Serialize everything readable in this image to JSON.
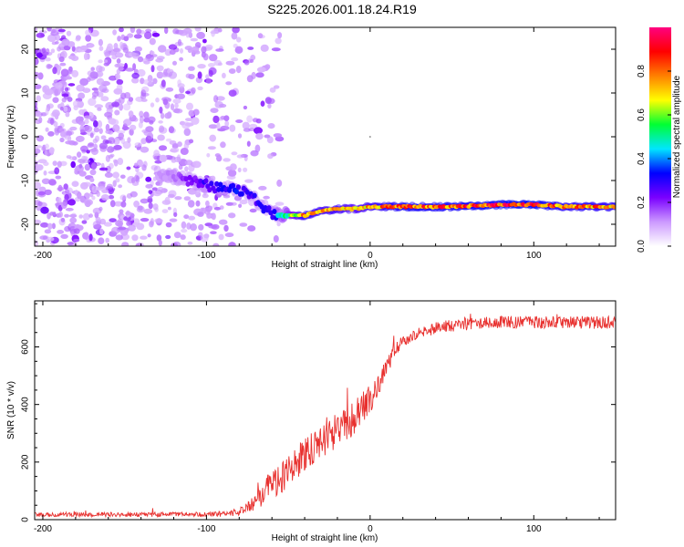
{
  "title": "S225.2026.001.18.24.R19",
  "chart_data": [
    {
      "type": "heatmap",
      "id": "spectrogram",
      "xlabel": "Height of straight line (km)",
      "ylabel": "Frequency (Hz)",
      "xlim": [
        -205,
        150
      ],
      "ylim": [
        -25,
        25
      ],
      "xticks": [
        -200,
        -100,
        0,
        100
      ],
      "xtick_labels": [
        "-200",
        "-100",
        "0",
        "100"
      ],
      "yticks": [
        -20,
        -10,
        0,
        10,
        20
      ],
      "ytick_labels": [
        "-20",
        "-10",
        "0",
        "10",
        "20"
      ],
      "colorbar": {
        "label": "Normalized spectral amplitude",
        "range": [
          0,
          1
        ],
        "ticks": [
          0.0,
          0.2,
          0.4,
          0.6,
          0.8
        ],
        "tick_labels": [
          "0.0",
          "0.2",
          "0.4",
          "0.6",
          "0.8"
        ],
        "colors": [
          "#ffffff",
          "#cc99ff",
          "#7a00ff",
          "#0000ff",
          "#00e5ff",
          "#00ff33",
          "#ffff00",
          "#ff8000",
          "#ff0000",
          "#ff0080"
        ]
      },
      "signal_track": {
        "x": [
          -205,
          -150,
          -120,
          -100,
          -90,
          -80,
          -70,
          -60,
          -50,
          -40,
          -30,
          -20,
          -10,
          0,
          20,
          50,
          80,
          100,
          120,
          150
        ],
        "freq": [
          -7.5,
          -8,
          -9,
          -11,
          -12,
          -12,
          -14.5,
          -17.5,
          -18,
          -18,
          -17,
          -16.5,
          -16.5,
          -16,
          -16,
          -16,
          -15.5,
          -15.5,
          -16,
          -16
        ],
        "strength": [
          0.05,
          0.05,
          0.15,
          0.3,
          0.35,
          0.35,
          0.3,
          0.35,
          0.6,
          0.85,
          0.8,
          0.8,
          0.75,
          0.8,
          0.9,
          0.9,
          0.95,
          0.95,
          0.85,
          0.85
        ]
      },
      "noise_extent_x": [
        -205,
        -55
      ]
    },
    {
      "type": "line",
      "id": "snr",
      "xlabel": "Height of straight line (km)",
      "ylabel": "SNR (10 * v/v)",
      "xlim": [
        -205,
        150
      ],
      "ylim": [
        0,
        760
      ],
      "xticks": [
        -200,
        -100,
        0,
        100
      ],
      "xtick_labels": [
        "-200",
        "-100",
        "0",
        "100"
      ],
      "yticks": [
        0,
        200,
        400,
        600
      ],
      "ytick_labels": [
        "0",
        "200",
        "400",
        "600"
      ],
      "series": [
        {
          "name": "SNR",
          "color": "#e8312f",
          "envelope_x": [
            -205,
            -100,
            -90,
            -80,
            -75,
            -70,
            -65,
            -60,
            -55,
            -50,
            -45,
            -40,
            -35,
            -30,
            -25,
            -20,
            -15,
            -10,
            -5,
            0,
            5,
            10,
            15,
            20,
            25,
            30,
            40,
            50,
            60,
            80,
            100,
            120,
            150
          ],
          "envelope_mean": [
            18,
            18,
            20,
            28,
            40,
            60,
            90,
            130,
            150,
            170,
            200,
            230,
            250,
            270,
            290,
            310,
            330,
            350,
            380,
            420,
            470,
            530,
            590,
            620,
            640,
            650,
            665,
            675,
            680,
            685,
            685,
            685,
            685
          ],
          "envelope_noise": [
            8,
            8,
            10,
            14,
            20,
            28,
            40,
            60,
            60,
            60,
            60,
            60,
            60,
            60,
            60,
            60,
            60,
            60,
            60,
            55,
            45,
            35,
            25,
            22,
            22,
            22,
            22,
            22,
            22,
            22,
            22,
            22,
            22
          ]
        }
      ]
    }
  ]
}
